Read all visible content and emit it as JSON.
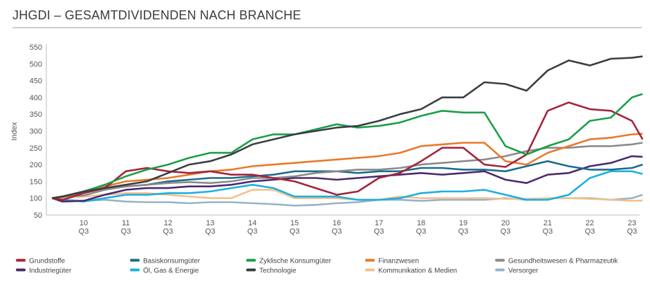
{
  "chart_data": {
    "type": "line",
    "title": "JHGDI – GESAMTDIVIDENDEN NACH BRANCHE",
    "xlabel": "",
    "ylabel": "Index",
    "ylim": [
      50,
      550
    ],
    "yticks": [
      50,
      100,
      150,
      200,
      250,
      300,
      350,
      400,
      450,
      500,
      550
    ],
    "xticks": [
      {
        "x": "2010 Q3",
        "year": "10",
        "q": "Q3"
      },
      {
        "x": "2011 Q3",
        "year": "11",
        "q": "Q3"
      },
      {
        "x": "2012 Q3",
        "year": "12",
        "q": "Q3"
      },
      {
        "x": "2013 Q3",
        "year": "13",
        "q": "Q3"
      },
      {
        "x": "2014 Q3",
        "year": "14",
        "q": "Q3"
      },
      {
        "x": "2015 Q3",
        "year": "15",
        "q": "Q3"
      },
      {
        "x": "2016 Q3",
        "year": "16",
        "q": "Q3"
      },
      {
        "x": "2017 Q3",
        "year": "17",
        "q": "Q3"
      },
      {
        "x": "2018 Q3",
        "year": "18",
        "q": "Q3"
      },
      {
        "x": "2019 Q3",
        "year": "19",
        "q": "Q3"
      },
      {
        "x": "2020 Q3",
        "year": "20",
        "q": "Q3"
      },
      {
        "x": "2021 Q3",
        "year": "21",
        "q": "Q3"
      },
      {
        "x": "2022 Q3",
        "year": "22",
        "q": "Q3"
      },
      {
        "x": "2023 Q3",
        "year": "23",
        "q": "Q3"
      }
    ],
    "grid": false,
    "legend_placement": "bottom",
    "x": [
      "2009 Q4",
      "2010 Q1",
      "2010 Q3",
      "2011 Q1",
      "2011 Q3",
      "2012 Q1",
      "2012 Q3",
      "2013 Q1",
      "2013 Q3",
      "2014 Q1",
      "2014 Q3",
      "2015 Q1",
      "2015 Q3",
      "2016 Q1",
      "2016 Q3",
      "2017 Q1",
      "2017 Q3",
      "2018 Q1",
      "2018 Q3",
      "2019 Q1",
      "2019 Q3",
      "2020 Q1",
      "2020 Q3",
      "2021 Q1",
      "2021 Q3",
      "2022 Q1",
      "2022 Q3",
      "2023 Q1",
      "2023 Q3",
      "2023 Q4"
    ],
    "series": [
      {
        "name": "Grundstoffe",
        "color": "#a3243b",
        "values": [
          100,
          95,
          115,
          130,
          180,
          190,
          180,
          175,
          180,
          170,
          170,
          160,
          150,
          130,
          110,
          120,
          160,
          175,
          210,
          250,
          250,
          200,
          193,
          230,
          360,
          385,
          365,
          360,
          330,
          275
        ]
      },
      {
        "name": "Basiskonsumgüter",
        "color": "#1d6b8c",
        "values": [
          100,
          105,
          115,
          130,
          135,
          140,
          150,
          155,
          160,
          160,
          165,
          170,
          180,
          180,
          180,
          175,
          180,
          180,
          190,
          190,
          185,
          185,
          180,
          195,
          210,
          195,
          185,
          185,
          190,
          200
        ]
      },
      {
        "name": "Zyklische Konsumgüter",
        "color": "#1a9e48",
        "values": [
          100,
          105,
          120,
          140,
          165,
          185,
          200,
          220,
          235,
          235,
          275,
          290,
          290,
          305,
          320,
          310,
          315,
          325,
          345,
          360,
          355,
          355,
          255,
          230,
          255,
          275,
          330,
          340,
          400,
          410
        ]
      },
      {
        "name": "Finanzwesen",
        "color": "#e8792a",
        "values": [
          100,
          103,
          118,
          135,
          150,
          155,
          160,
          170,
          180,
          185,
          195,
          200,
          205,
          210,
          215,
          220,
          225,
          235,
          255,
          260,
          265,
          265,
          210,
          200,
          235,
          255,
          275,
          280,
          290,
          292
        ]
      },
      {
        "name": "Gesundheitswesen & Pharmazeutik",
        "color": "#8a8a8a",
        "values": [
          100,
          105,
          108,
          125,
          135,
          140,
          145,
          148,
          145,
          150,
          160,
          160,
          165,
          175,
          180,
          185,
          185,
          190,
          200,
          205,
          210,
          215,
          225,
          240,
          250,
          250,
          255,
          255,
          260,
          265
        ]
      },
      {
        "name": "Industriegüter",
        "color": "#4b2a6b",
        "values": [
          100,
          90,
          92,
          110,
          125,
          130,
          130,
          135,
          135,
          140,
          150,
          155,
          160,
          160,
          155,
          160,
          165,
          170,
          175,
          170,
          175,
          180,
          155,
          145,
          170,
          175,
          195,
          205,
          225,
          223
        ]
      },
      {
        "name": "Öl, Gas & Energie",
        "color": "#1bb0e0",
        "values": [
          100,
          95,
          90,
          100,
          110,
          110,
          115,
          115,
          120,
          130,
          140,
          130,
          105,
          105,
          105,
          95,
          95,
          100,
          115,
          120,
          120,
          125,
          110,
          95,
          95,
          110,
          160,
          180,
          180,
          172
        ]
      },
      {
        "name": "Technologie",
        "color": "#3a3d42",
        "values": [
          100,
          105,
          120,
          130,
          140,
          150,
          175,
          200,
          210,
          230,
          260,
          275,
          290,
          300,
          310,
          315,
          330,
          350,
          365,
          400,
          400,
          445,
          440,
          420,
          480,
          510,
          495,
          515,
          518,
          522
        ]
      },
      {
        "name": "Kommunikation & Medien",
        "color": "#f3c08e",
        "values": [
          100,
          100,
          105,
          110,
          115,
          115,
          110,
          105,
          100,
          100,
          125,
          125,
          100,
          100,
          100,
          95,
          95,
          105,
          100,
          100,
          100,
          100,
          98,
          98,
          100,
          100,
          98,
          95,
          92,
          93
        ]
      },
      {
        "name": "Versorger",
        "color": "#95b3c8",
        "values": [
          100,
          95,
          92,
          95,
          90,
          88,
          88,
          85,
          88,
          88,
          85,
          82,
          78,
          80,
          85,
          88,
          95,
          95,
          92,
          95,
          95,
          95,
          100,
          95,
          100,
          100,
          100,
          95,
          100,
          110
        ]
      }
    ],
    "legend_order": [
      0,
      1,
      2,
      3,
      4,
      5,
      6,
      7,
      8,
      9
    ]
  }
}
